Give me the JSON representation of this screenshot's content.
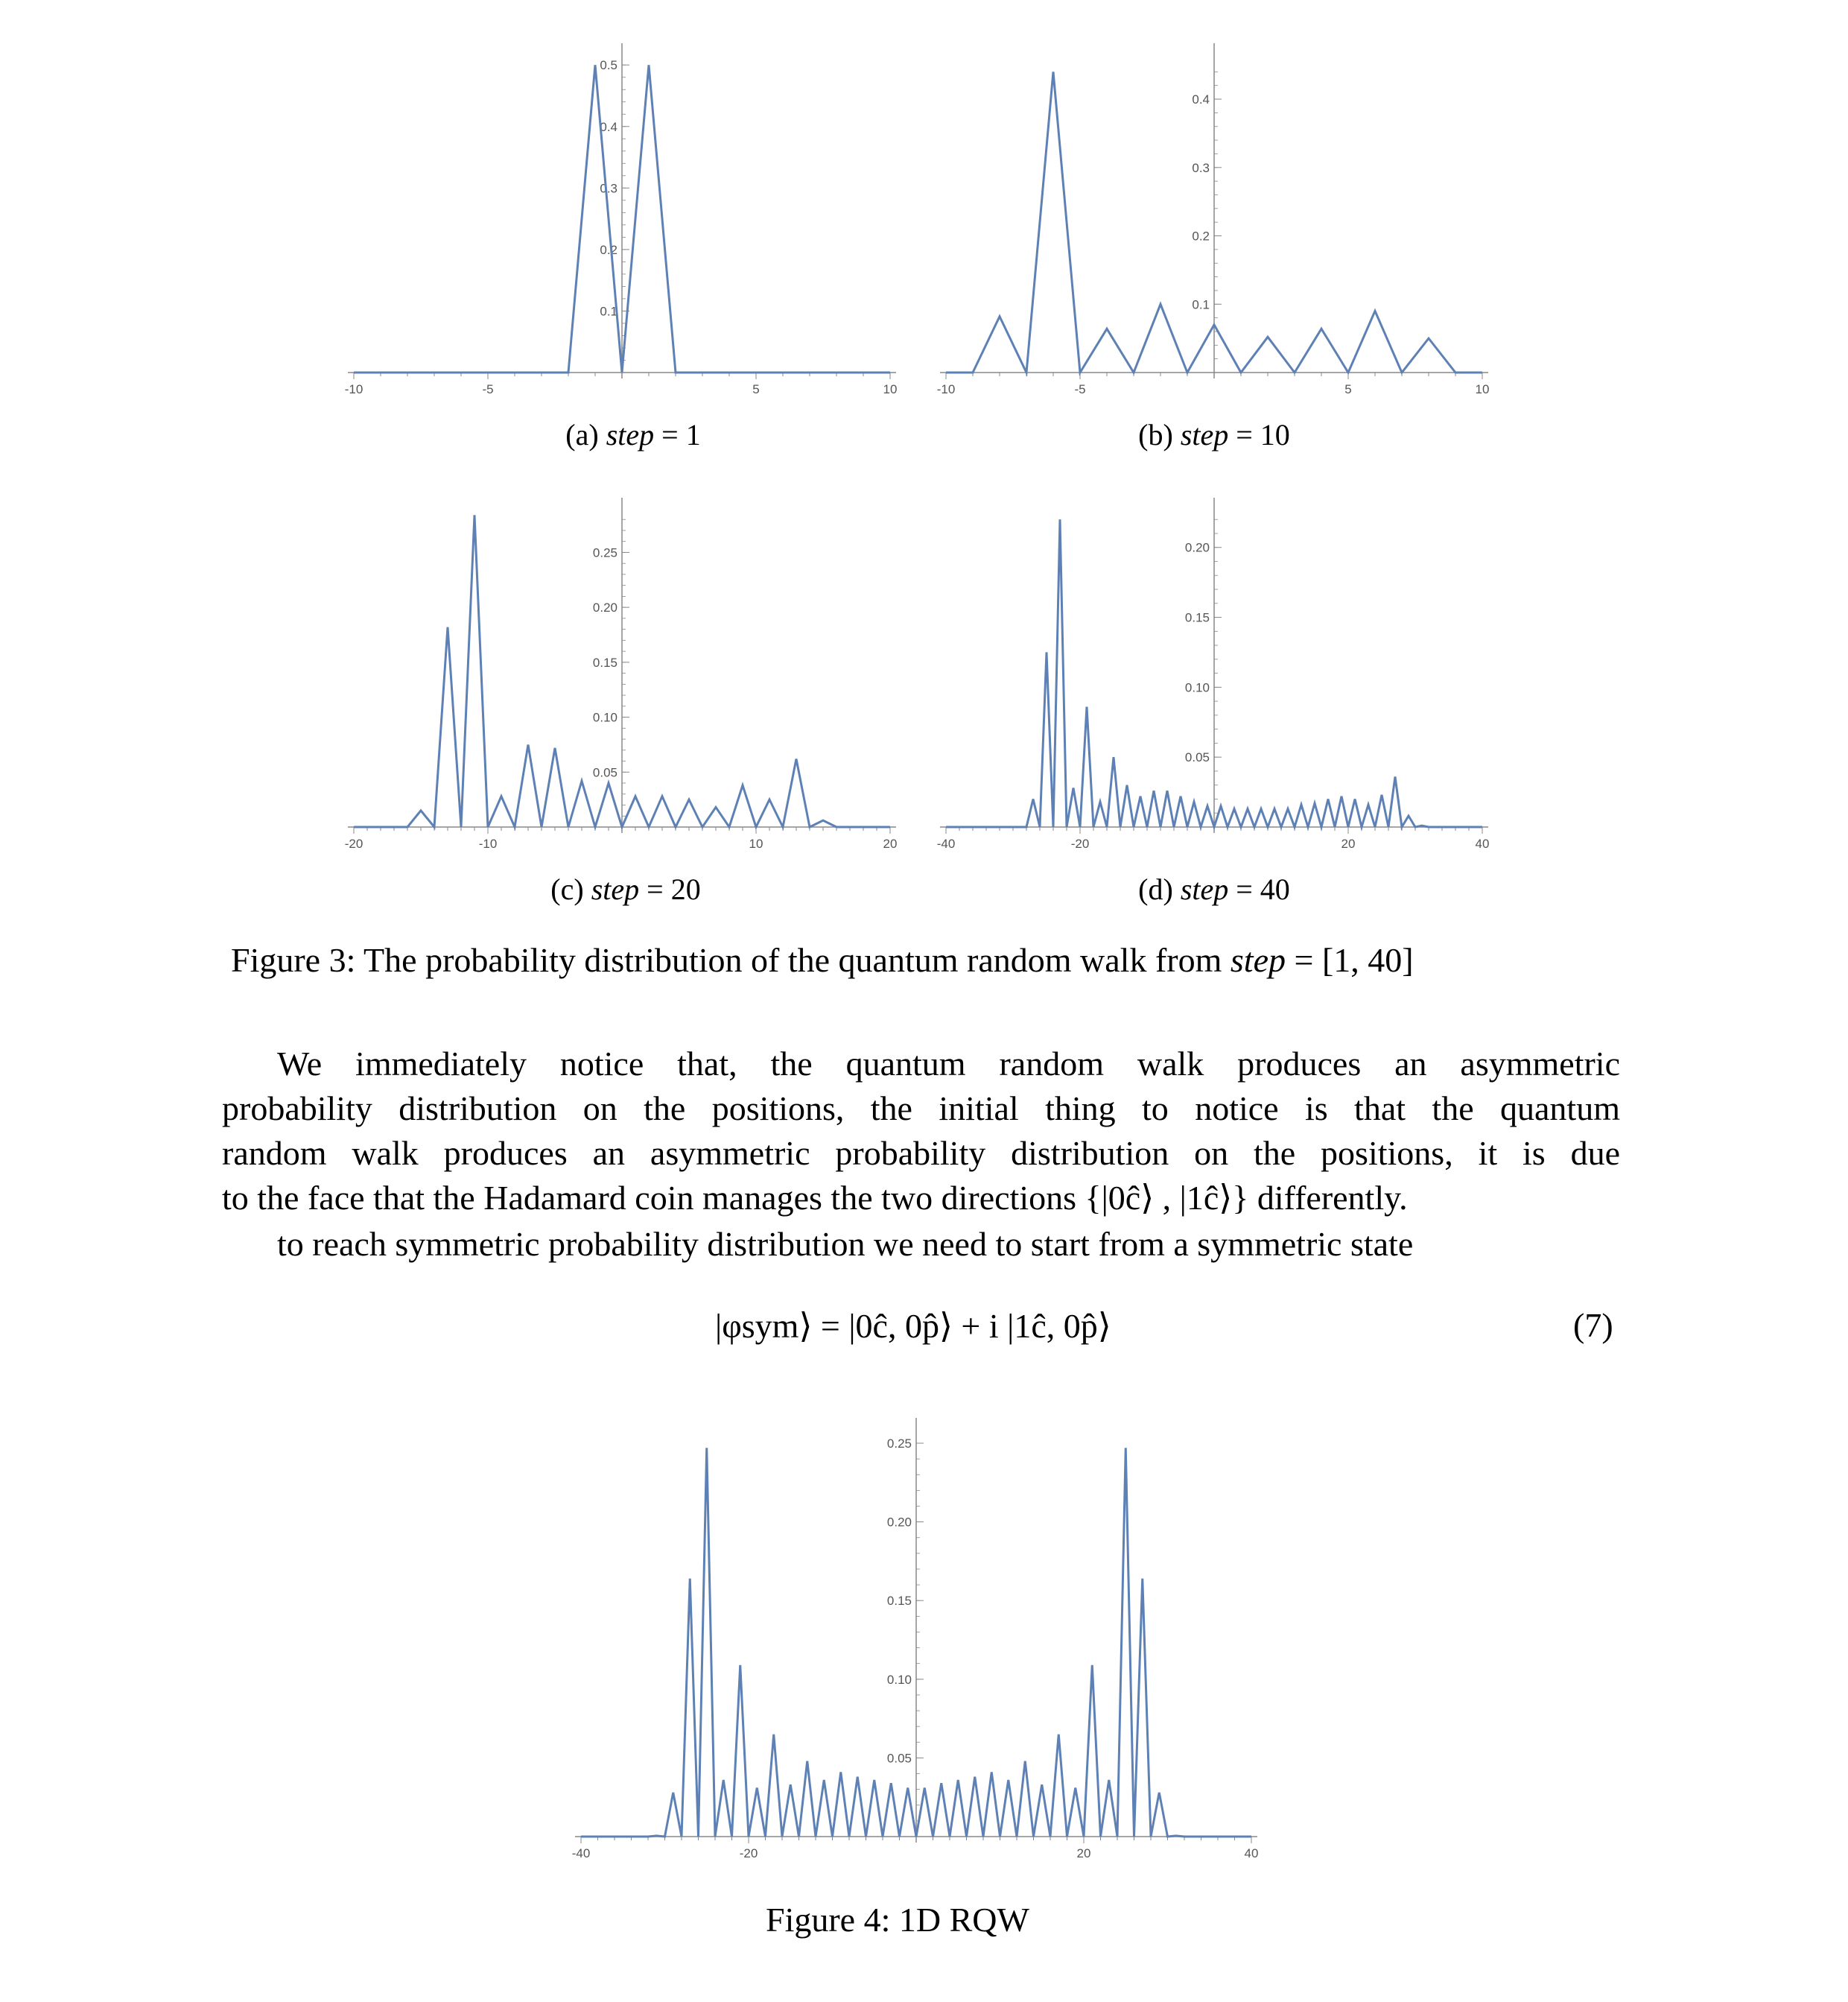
{
  "colors": {
    "series": "#5e81b5",
    "axis": "#888888",
    "tick_text": "#555555"
  },
  "figure3": {
    "caption": "Figure 3: The probability distribution of the quantum random walk from step = [1, 40]",
    "caption_prefix": "Figure 3: The probability distribution of the quantum random walk from ",
    "caption_var": "step",
    "caption_suffix": " = [1, 40]",
    "subfigures": [
      {
        "label": "(a)",
        "var": "step",
        "eq": "= 1"
      },
      {
        "label": "(b)",
        "var": "step",
        "eq": "= 10"
      },
      {
        "label": "(c)",
        "var": "step",
        "eq": "= 20"
      },
      {
        "label": "(d)",
        "var": "step",
        "eq": "= 40"
      }
    ]
  },
  "paragraph": {
    "lines": [
      "We immediately notice that, the quantum random walk produces an asymmetric",
      "probability distribution on the positions, the initial thing to notice is that the quantum",
      "random walk produces an asymmetric probability distribution on the positions, it is due",
      "to the face that the Hadamard coin manages the two directions {|0ĉ⟩ , |1ĉ⟩} differently."
    ],
    "line2": "to reach symmetric probability distribution we need to start from a symmetric state"
  },
  "equation": {
    "text": "|φsym⟩ = |0ĉ, 0p̂⟩ + i |1ĉ, 0p̂⟩",
    "number": "(7)"
  },
  "figure4": {
    "caption": "Figure 4: 1D RQW"
  },
  "chart_data": [
    {
      "type": "line",
      "panel": "a",
      "x": [
        -10,
        -9,
        -8,
        -7,
        -6,
        -5,
        -4,
        -3,
        -2,
        -1,
        0,
        1,
        2,
        3,
        4,
        5,
        6,
        7,
        8,
        9,
        10
      ],
      "y": [
        0,
        0,
        0,
        0,
        0,
        0,
        0,
        0,
        0,
        0.5,
        0,
        0.5,
        0,
        0,
        0,
        0,
        0,
        0,
        0,
        0,
        0
      ],
      "xlim": [
        -10,
        10
      ],
      "ylim": [
        0,
        0.5
      ],
      "xticks": [
        -10,
        -5,
        5,
        10
      ],
      "yticks": [
        0.1,
        0.2,
        0.3,
        0.4,
        0.5
      ],
      "xtick_labels": [
        "-10",
        "-5",
        "5",
        "10"
      ],
      "ytick_labels": [
        "0.1",
        "0.2",
        "0.3",
        "0.4",
        "0.5"
      ],
      "title": "",
      "xlabel": "",
      "ylabel": ""
    },
    {
      "type": "line",
      "panel": "b",
      "x": [
        -10,
        -9,
        -8,
        -7,
        -6,
        -5,
        -4,
        -3,
        -2,
        -1,
        0,
        1,
        2,
        3,
        4,
        5,
        6,
        7,
        8,
        9,
        10
      ],
      "y": [
        0,
        0,
        0.082,
        0,
        0.44,
        0,
        0.064,
        0,
        0.1,
        0,
        0.07,
        0,
        0.052,
        0,
        0.064,
        0,
        0.09,
        0,
        0.05,
        0,
        0
      ],
      "xlim": [
        -10,
        10
      ],
      "ylim": [
        0,
        0.45
      ],
      "xticks": [
        -10,
        -5,
        5,
        10
      ],
      "yticks": [
        0.1,
        0.2,
        0.3,
        0.4
      ],
      "xtick_labels": [
        "-10",
        "-5",
        "5",
        "10"
      ],
      "ytick_labels": [
        "0.1",
        "0.2",
        "0.3",
        "0.4"
      ],
      "title": "",
      "xlabel": "",
      "ylabel": ""
    },
    {
      "type": "line",
      "panel": "c",
      "x": [
        -20,
        -19,
        -18,
        -17,
        -16,
        -15,
        -14,
        -13,
        -12,
        -11,
        -10,
        -9,
        -8,
        -7,
        -6,
        -5,
        -4,
        -3,
        -2,
        -1,
        0,
        1,
        2,
        3,
        4,
        5,
        6,
        7,
        8,
        9,
        10,
        11,
        12,
        13,
        14,
        15,
        16,
        17,
        18,
        19,
        20
      ],
      "y": [
        0,
        0,
        0,
        0,
        0,
        0.015,
        0,
        0.182,
        0,
        0.284,
        0,
        0.028,
        0,
        0.075,
        0,
        0.072,
        0,
        0.042,
        0,
        0.04,
        0,
        0.028,
        0,
        0.028,
        0,
        0.025,
        0,
        0.018,
        0,
        0.038,
        0,
        0.025,
        0,
        0.062,
        0,
        0.006,
        0,
        0,
        0,
        0,
        0
      ],
      "xlim": [
        -20,
        20
      ],
      "ylim": [
        0,
        0.28
      ],
      "xticks": [
        -20,
        -10,
        10,
        20
      ],
      "yticks": [
        0.05,
        0.1,
        0.15,
        0.2,
        0.25
      ],
      "xtick_labels": [
        "-20",
        "-10",
        "10",
        "20"
      ],
      "ytick_labels": [
        "0.05",
        "0.10",
        "0.15",
        "0.20",
        "0.25"
      ],
      "title": "",
      "xlabel": "",
      "ylabel": ""
    },
    {
      "type": "line",
      "panel": "d",
      "x": [
        -40,
        -39,
        -38,
        -37,
        -36,
        -35,
        -34,
        -33,
        -32,
        -31,
        -30,
        -29,
        -28,
        -27,
        -26,
        -25,
        -24,
        -23,
        -22,
        -21,
        -20,
        -19,
        -18,
        -17,
        -16,
        -15,
        -14,
        -13,
        -12,
        -11,
        -10,
        -9,
        -8,
        -7,
        -6,
        -5,
        -4,
        -3,
        -2,
        -1,
        0,
        1,
        2,
        3,
        4,
        5,
        6,
        7,
        8,
        9,
        10,
        11,
        12,
        13,
        14,
        15,
        16,
        17,
        18,
        19,
        20,
        21,
        22,
        23,
        24,
        25,
        26,
        27,
        28,
        29,
        30,
        31,
        32,
        33,
        34,
        35,
        36,
        37,
        38,
        39,
        40
      ],
      "y": [
        0,
        0,
        0,
        0,
        0,
        0,
        0,
        0,
        0,
        0,
        0,
        0,
        0,
        0.02,
        0,
        0.125,
        0,
        0.22,
        0,
        0.028,
        0,
        0.086,
        0,
        0.018,
        0,
        0.05,
        0,
        0.03,
        0,
        0.022,
        0,
        0.026,
        0,
        0.026,
        0,
        0.022,
        0,
        0.018,
        0,
        0.015,
        0,
        0.015,
        0,
        0.013,
        0,
        0.013,
        0,
        0.013,
        0,
        0.013,
        0,
        0.013,
        0,
        0.016,
        0,
        0.017,
        0,
        0.02,
        0,
        0.022,
        0,
        0.02,
        0,
        0.016,
        0,
        0.023,
        0,
        0.036,
        0,
        0.008,
        0,
        0.001,
        0,
        0,
        0,
        0,
        0,
        0,
        0,
        0,
        0
      ],
      "xlim": [
        -40,
        40
      ],
      "ylim": [
        0,
        0.22
      ],
      "xticks": [
        -40,
        -20,
        20,
        40
      ],
      "yticks": [
        0.05,
        0.1,
        0.15,
        0.2
      ],
      "xtick_labels": [
        "-40",
        "-20",
        "20",
        "40"
      ],
      "ytick_labels": [
        "0.05",
        "0.10",
        "0.15",
        "0.20"
      ],
      "title": "",
      "xlabel": "",
      "ylabel": ""
    },
    {
      "type": "line",
      "panel": "figure4",
      "x": [
        -40,
        -39,
        -38,
        -37,
        -36,
        -35,
        -34,
        -33,
        -32,
        -31,
        -30,
        -29,
        -28,
        -27,
        -26,
        -25,
        -24,
        -23,
        -22,
        -21,
        -20,
        -19,
        -18,
        -17,
        -16,
        -15,
        -14,
        -13,
        -12,
        -11,
        -10,
        -9,
        -8,
        -7,
        -6,
        -5,
        -4,
        -3,
        -2,
        -1,
        0,
        1,
        2,
        3,
        4,
        5,
        6,
        7,
        8,
        9,
        10,
        11,
        12,
        13,
        14,
        15,
        16,
        17,
        18,
        19,
        20,
        21,
        22,
        23,
        24,
        25,
        26,
        27,
        28,
        29,
        30,
        31,
        32,
        33,
        34,
        35,
        36,
        37,
        38,
        39,
        40
      ],
      "y": [
        0,
        0,
        0,
        0,
        0,
        0,
        0,
        0,
        0,
        0.0005,
        0,
        0.028,
        0,
        0.164,
        0,
        0.247,
        0,
        0.036,
        0,
        0.109,
        0,
        0.031,
        0,
        0.065,
        0,
        0.033,
        0,
        0.048,
        0,
        0.036,
        0,
        0.041,
        0,
        0.038,
        0,
        0.036,
        0,
        0.034,
        0,
        0.031,
        0,
        0.031,
        0,
        0.034,
        0,
        0.036,
        0,
        0.038,
        0,
        0.041,
        0,
        0.036,
        0,
        0.048,
        0,
        0.033,
        0,
        0.065,
        0,
        0.031,
        0,
        0.109,
        0,
        0.036,
        0,
        0.247,
        0,
        0.164,
        0,
        0.028,
        0,
        0.0005,
        0,
        0,
        0,
        0,
        0,
        0,
        0,
        0,
        0
      ],
      "xlim": [
        -40,
        40
      ],
      "ylim": [
        0,
        0.25
      ],
      "xticks": [
        -40,
        -20,
        20,
        40
      ],
      "yticks": [
        0.05,
        0.1,
        0.15,
        0.2,
        0.25
      ],
      "xtick_labels": [
        "-40",
        "-20",
        "20",
        "40"
      ],
      "ytick_labels": [
        "0.05",
        "0.10",
        "0.15",
        "0.20",
        "0.25"
      ],
      "title": "",
      "xlabel": "",
      "ylabel": ""
    }
  ]
}
